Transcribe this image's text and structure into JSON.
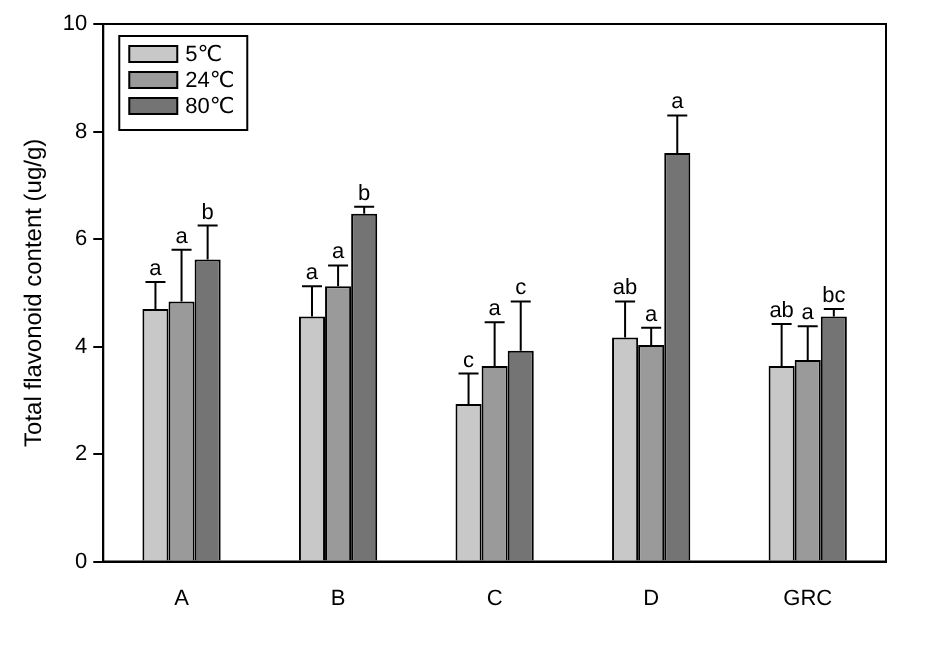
{
  "chart_data": {
    "type": "bar",
    "ylabel": "Total flavonoid content (ug/g)",
    "categories": [
      "A",
      "B",
      "C",
      "D",
      "GRC"
    ],
    "series": [
      {
        "name": "5℃",
        "color": "#c8c8c8",
        "values": [
          4.7,
          4.56,
          2.93,
          4.17,
          3.64
        ],
        "errors": [
          [
            4.7,
            5.2
          ],
          [
            4.56,
            5.12
          ],
          [
            2.93,
            3.5
          ],
          [
            4.17,
            4.84
          ],
          [
            3.64,
            4.42
          ]
        ],
        "value_labels": [
          "a",
          "a",
          "c",
          "ab",
          "ab"
        ]
      },
      {
        "name": "24℃",
        "color": "#9a9a9a",
        "values": [
          4.84,
          5.12,
          3.64,
          4.03,
          3.75
        ],
        "errors": [
          [
            4.84,
            5.8
          ],
          [
            5.12,
            5.51
          ],
          [
            3.64,
            4.45
          ],
          [
            4.03,
            4.35
          ],
          [
            3.75,
            4.38
          ]
        ],
        "value_labels": [
          "a",
          "a",
          "a",
          "a",
          "a"
        ]
      },
      {
        "name": "80℃",
        "color": "#747474",
        "values": [
          5.62,
          6.47,
          3.92,
          7.6,
          4.56
        ],
        "errors": [
          [
            5.62,
            6.25
          ],
          [
            6.47,
            6.6
          ],
          [
            3.92,
            4.84
          ],
          [
            7.6,
            8.3
          ],
          [
            4.56,
            4.7
          ]
        ],
        "value_labels": [
          "b",
          "b",
          "c",
          "a",
          "bc"
        ]
      }
    ],
    "ylim": [
      0,
      10
    ],
    "yticks": [
      0,
      2,
      4,
      6,
      8,
      10
    ],
    "grid": false,
    "legend": "top left"
  }
}
